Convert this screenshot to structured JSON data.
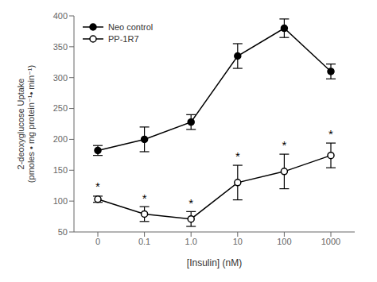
{
  "chart_data": {
    "type": "line",
    "title": "",
    "xlabel": "[Insulin] (nM)",
    "ylabel": "2-deoxyglucose Uptake\n(pmoles • mg protein⁻¹• min⁻¹)",
    "categories": [
      "0",
      "0.1",
      "1.0",
      "10",
      "100",
      "1000"
    ],
    "series": [
      {
        "name": "Neo control",
        "color": "#000000",
        "marker": "filled circle",
        "line_style": "solid",
        "values": [
          182,
          200,
          228,
          335,
          380,
          310
        ],
        "errors": [
          8,
          20,
          12,
          20,
          15,
          12
        ]
      },
      {
        "name": "PP-1R7",
        "color": "#000000",
        "marker": "open circle",
        "line_style": "solid",
        "values": [
          103,
          79,
          71,
          130,
          148,
          174
        ],
        "errors": [
          5,
          12,
          12,
          28,
          28,
          20
        ]
      }
    ],
    "annotations": [
      {
        "text": "*",
        "x": "0",
        "y": 115
      },
      {
        "text": "*",
        "x": "0.1",
        "y": 96
      },
      {
        "text": "*",
        "x": "1.0",
        "y": 88
      },
      {
        "text": "*",
        "x": "10",
        "y": 165
      },
      {
        "text": "*",
        "x": "100",
        "y": 182
      },
      {
        "text": "*",
        "x": "1000",
        "y": 200
      }
    ],
    "ylim": [
      50,
      400
    ],
    "yticks": [
      50,
      100,
      150,
      200,
      250,
      300,
      350,
      400
    ],
    "grid": false,
    "legend": "upper left"
  }
}
